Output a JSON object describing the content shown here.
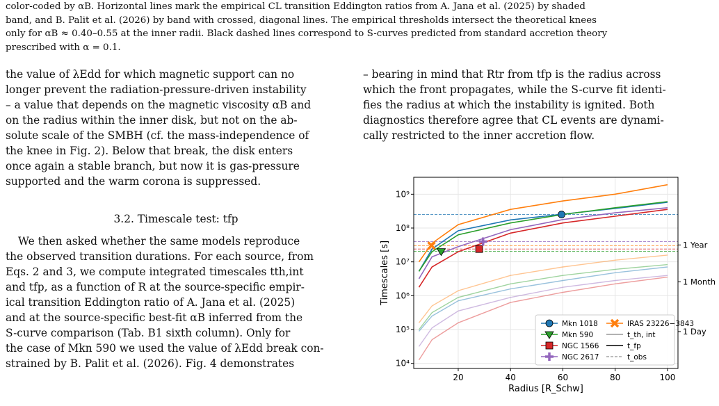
{
  "caption": {
    "line1": "color-coded by αB. Horizontal lines mark the empirical CL transition Eddington ratios from A. Jana et al. (2025) by shaded",
    "line2": "band, and B. Palit et al. (2026) by band with crossed, diagonal lines. The empirical thresholds intersect the theoretical knees",
    "line3": "only for αB ≈ 0.40–0.55 at the inner radii. Black dashed lines correspond to S-curves predicted from standard accretion theory",
    "line4": "prescribed with α = 0.1."
  },
  "left_column": {
    "para1": [
      "the value of λEdd for which magnetic support can no",
      "longer prevent the radiation-pressure-driven instability",
      "– a value that depends on the magnetic viscosity αB and",
      "on the radius within the inner disk, but not on the ab-",
      "solute scale of the SMBH (cf. the mass-independence of",
      "the knee in Fig. 2). Below that break, the disk enters",
      "once again a stable branch, but now it is gas-pressure",
      "supported and the warm corona is suppressed."
    ],
    "section_title": "3.2. Timescale test: tfp",
    "para2": [
      "We then asked whether the same models reproduce",
      "the observed transition durations. For each source, from",
      "Eqs. 2 and 3, we compute integrated timescales tth,int",
      "and tfp, as a function of R at the source-specific empir-",
      "ical transition Eddington ratio of A. Jana et al. (2025)",
      "and at the source-specific best-fit αB inferred from the",
      "S-curve comparison (Tab. B1 sixth column). Only for",
      "the case of Mkn 590 we used the value of λEdd break con-",
      "strained by B. Palit et al. (2026). Fig. 4 demonstrates"
    ]
  },
  "right_column": {
    "para": [
      "– bearing in mind that Rtr from tfp is the radius across",
      "which the front propagates, while the S-curve fit identi-",
      "fies the radius at which the instability is ignited. Both",
      "diagnostics therefore agree that CL events are dynami-",
      "cally restricted to the inner accretion flow."
    ]
  },
  "chart_data": {
    "type": "line",
    "xlabel": "Radius [R_Schw]",
    "ylabel": "Timescales [s]",
    "xlim": [
      3,
      104
    ],
    "ylim_log10": [
      3.85,
      9.5
    ],
    "yscale": "log",
    "x_ticks": [
      20,
      40,
      60,
      80,
      100
    ],
    "y_ticks_log10": [
      4,
      5,
      6,
      7,
      8,
      9
    ],
    "y_tick_labels": [
      "10⁴",
      "10⁵",
      "10⁶",
      "10⁷",
      "10⁸",
      "10⁹"
    ],
    "grid": true,
    "legend_placement": "lower-right",
    "right_axis_labels": [
      {
        "label": "1 Year",
        "log10": 7.5
      },
      {
        "label": "1 Month",
        "log10": 6.41
      },
      {
        "label": "1 Day",
        "log10": 4.94
      }
    ],
    "legend_line_labels": {
      "t_th": "t_th, int",
      "t_fp": "t_fp",
      "t_obs": "t_obs"
    },
    "sources": [
      {
        "name": "Mkn 1018",
        "color": "#1f77b4",
        "marker": "circle",
        "tfp": {
          "x": [
            5,
            10,
            20,
            40,
            60,
            80,
            100
          ],
          "log10": [
            6.72,
            7.38,
            7.92,
            8.24,
            8.41,
            8.58,
            8.76
          ]
        },
        "tth": {
          "x": [
            5,
            10,
            20,
            40,
            60,
            80,
            100
          ],
          "log10": [
            4.95,
            5.4,
            5.85,
            6.2,
            6.45,
            6.68,
            6.85
          ]
        },
        "tobs_log10": 8.4,
        "point": {
          "x": 59.5,
          "log10": 8.4
        }
      },
      {
        "name": "Mkn 590",
        "color": "#2ca02c",
        "marker": "triangle-down",
        "tfp": {
          "x": [
            5,
            10,
            20,
            40,
            60,
            80,
            100
          ],
          "log10": [
            6.72,
            7.3,
            7.8,
            8.15,
            8.4,
            8.6,
            8.78
          ]
        },
        "tth": {
          "x": [
            5,
            10,
            20,
            40,
            60,
            80,
            100
          ],
          "log10": [
            5.0,
            5.5,
            5.95,
            6.35,
            6.6,
            6.78,
            6.92
          ]
        },
        "tobs_log10": 7.31,
        "point": {
          "x": 13.5,
          "log10": 7.31
        }
      },
      {
        "name": "NGC 1566",
        "color": "#d62728",
        "marker": "square",
        "tfp": {
          "x": [
            5,
            10,
            20,
            40,
            60,
            80,
            100
          ],
          "log10": [
            6.25,
            6.85,
            7.3,
            7.85,
            8.15,
            8.35,
            8.55
          ]
        },
        "tth": {
          "x": [
            5,
            10,
            20,
            40,
            60,
            80,
            100
          ],
          "log10": [
            4.1,
            4.7,
            5.2,
            5.8,
            6.1,
            6.35,
            6.55
          ]
        },
        "tobs_log10": 7.38,
        "point": {
          "x": 28,
          "log10": 7.38
        }
      },
      {
        "name": "NGC 2617",
        "color": "#9467bd",
        "marker": "plus",
        "tfp": {
          "x": [
            5,
            10,
            20,
            40,
            60,
            80,
            100
          ],
          "log10": [
            6.5,
            7.15,
            7.45,
            7.95,
            8.25,
            8.45,
            8.6
          ]
        },
        "tth": {
          "x": [
            5,
            10,
            20,
            40,
            60,
            80,
            100
          ],
          "log10": [
            4.5,
            5.05,
            5.55,
            5.95,
            6.25,
            6.45,
            6.6
          ]
        },
        "tobs_log10": 7.6,
        "point": {
          "x": 29.5,
          "log10": 7.6
        }
      },
      {
        "name": "IRAS 23226−3843",
        "color": "#ff7f0e",
        "marker": "x",
        "tfp": {
          "x": [
            5,
            10,
            20,
            40,
            60,
            80,
            100
          ],
          "log10": [
            7.0,
            7.55,
            8.1,
            8.55,
            8.8,
            9.0,
            9.28
          ]
        },
        "tth": {
          "x": [
            5,
            10,
            20,
            40,
            60,
            80,
            100
          ],
          "log10": [
            5.2,
            5.7,
            6.15,
            6.6,
            6.85,
            7.05,
            7.2
          ]
        },
        "tobs_log10": 7.48,
        "point": {
          "x": 9.8,
          "log10": 7.48
        }
      }
    ]
  }
}
